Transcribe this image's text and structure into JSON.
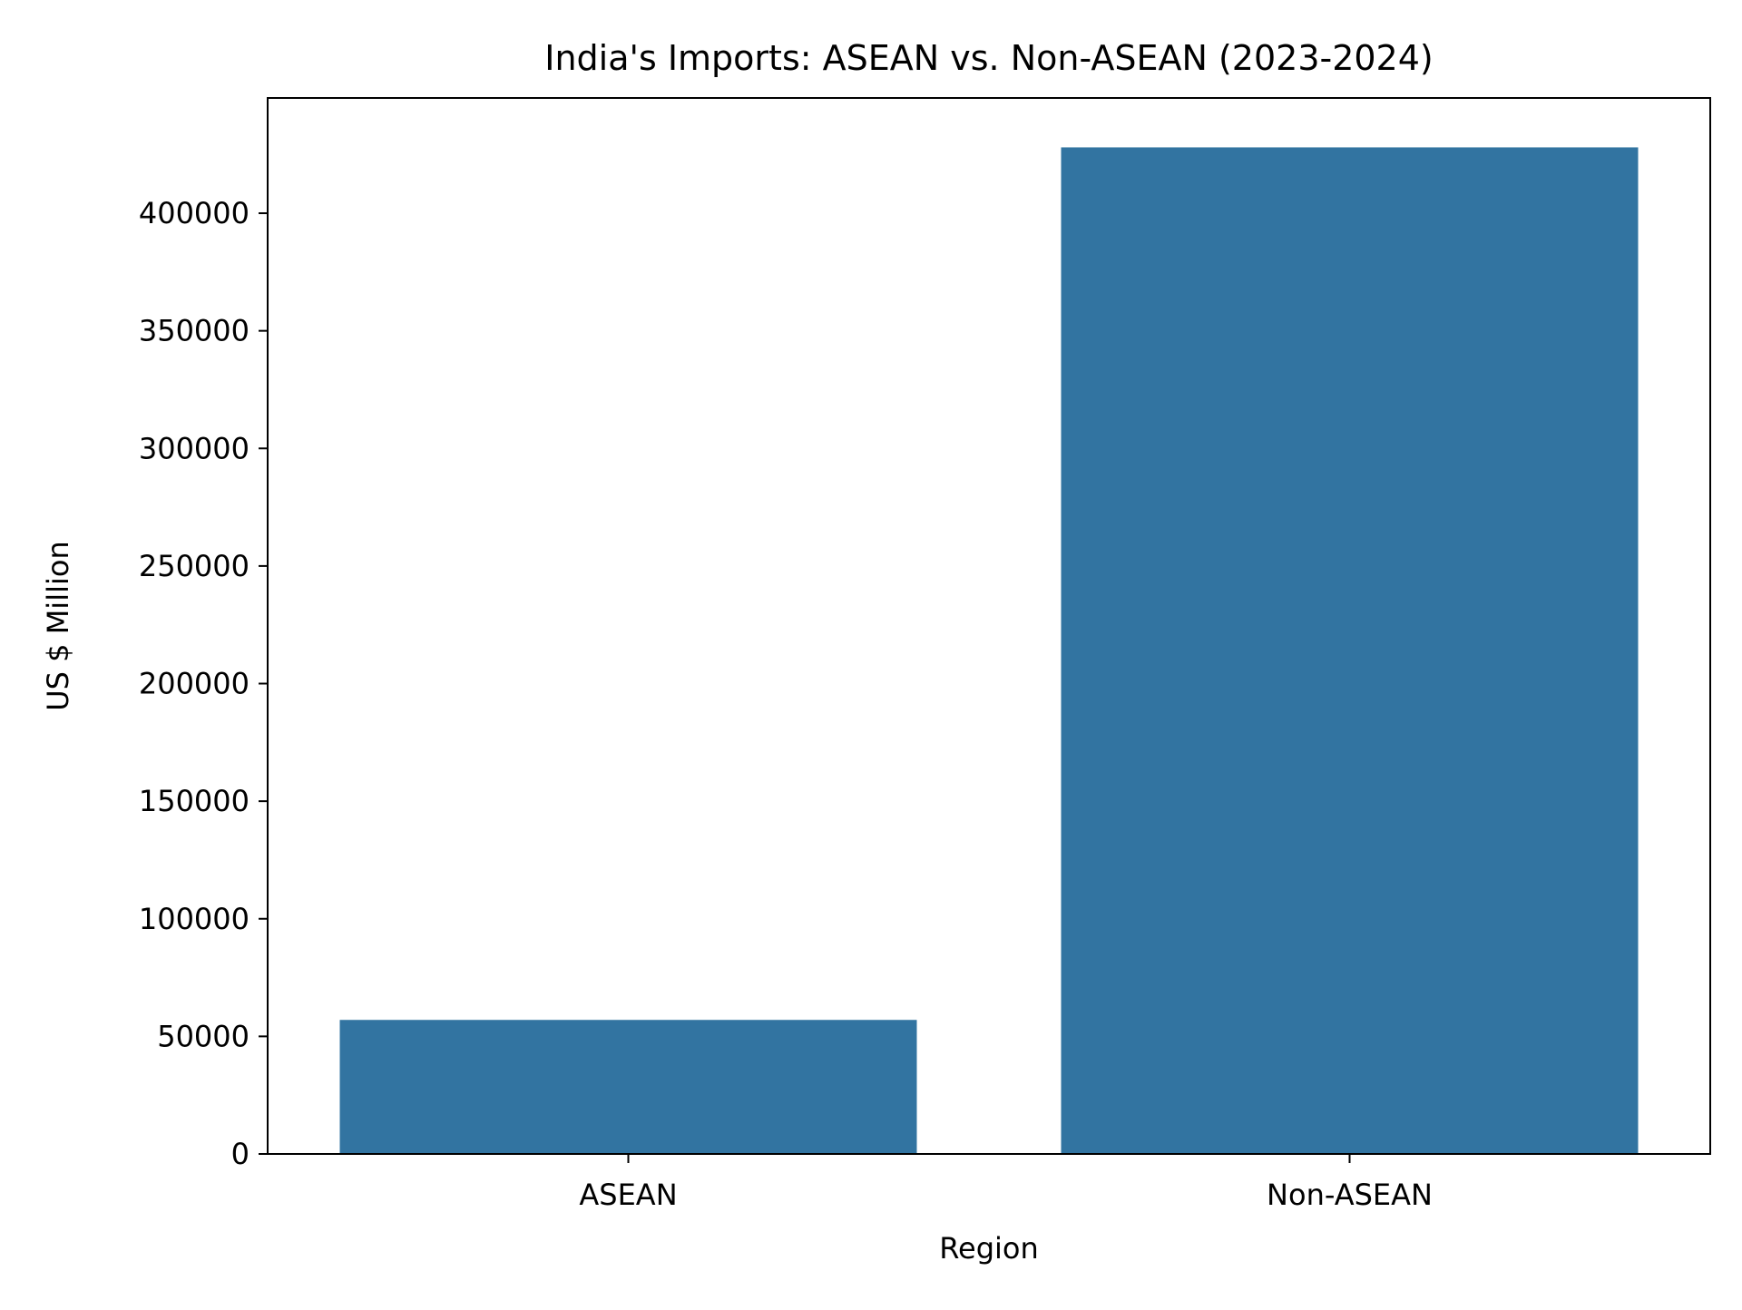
{
  "chart_data": {
    "type": "bar",
    "title": "India's Imports: ASEAN vs. Non-ASEAN (2023-2024)",
    "xlabel": "Region",
    "ylabel": "US $ Million",
    "categories": [
      "ASEAN",
      "Non-ASEAN"
    ],
    "values": [
      57000,
      428000
    ],
    "ylim": [
      0,
      449000
    ],
    "yticks": [
      0,
      50000,
      100000,
      150000,
      200000,
      250000,
      300000,
      350000,
      400000
    ],
    "grid": false,
    "legend": "none",
    "colors": {
      "bar": "#3274a1",
      "axis": "#000000",
      "background": "#ffffff"
    }
  }
}
